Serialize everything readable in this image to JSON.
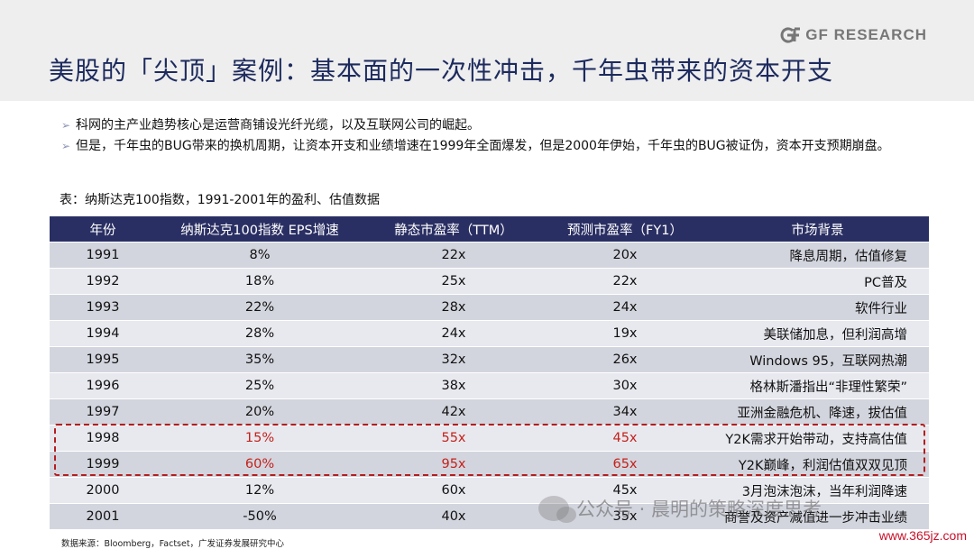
{
  "header": {
    "logo_text": "GF RESEARCH",
    "title": "美股的「尖顶」案例：基本面的一次性冲击，千年虫带来的资本开支"
  },
  "bullets": [
    "科网的主产业趋势核心是运营商铺设光纤光缆，以及互联网公司的崛起。",
    "但是，千年虫的BUG带来的换机周期，让资本开支和业绩增速在1999年全面爆发，但是2000年伊始，千年虫的BUG被证伪，资本开支预期崩盘。"
  ],
  "table": {
    "caption": "表：纳斯达克100指数，1991-2001年的盈利、估值数据",
    "headers": [
      "年份",
      "纳斯达克100指数 EPS增速",
      "静态市盈率（TTM）",
      "预测市盈率（FY1）",
      "市场背景"
    ],
    "rows": [
      [
        "1991",
        "8%",
        "22x",
        "20x",
        "降息周期，估值修复"
      ],
      [
        "1992",
        "18%",
        "25x",
        "22x",
        "PC普及"
      ],
      [
        "1993",
        "22%",
        "28x",
        "24x",
        "软件行业"
      ],
      [
        "1994",
        "28%",
        "24x",
        "19x",
        "美联储加息，但利润高增"
      ],
      [
        "1995",
        "35%",
        "32x",
        "26x",
        "Windows 95，互联网热潮"
      ],
      [
        "1996",
        "25%",
        "38x",
        "30x",
        "格林斯潘指出“非理性繁荣”"
      ],
      [
        "1997",
        "20%",
        "42x",
        "34x",
        "亚洲金融危机、降速，拔估值"
      ],
      [
        "1998",
        "15%",
        "55x",
        "45x",
        "Y2K需求开始带动，支持高估值"
      ],
      [
        "1999",
        "60%",
        "95x",
        "65x",
        "Y2K巅峰，利润估值双双见顶"
      ],
      [
        "2000",
        "12%",
        "60x",
        "45x",
        "3月泡沫泡沫，当年利润降速"
      ],
      [
        "2001",
        "-50%",
        "40x",
        "35x",
        "商誉及资产减值进一步冲击业绩"
      ]
    ],
    "highlight_color": "#c4221b"
  },
  "source": "数据来源：Bloomberg，Factset，广发证券发展研究中心",
  "watermark": "公众号 · 晨明的策略深度思考",
  "site": "www.365jz.com",
  "colors": {
    "title": "#1c2a5e",
    "table_header": "#2a2f63",
    "row_shade": "#d3d5de",
    "row_light": "#e8e9ef",
    "highlight_border": "#b31e1e"
  }
}
